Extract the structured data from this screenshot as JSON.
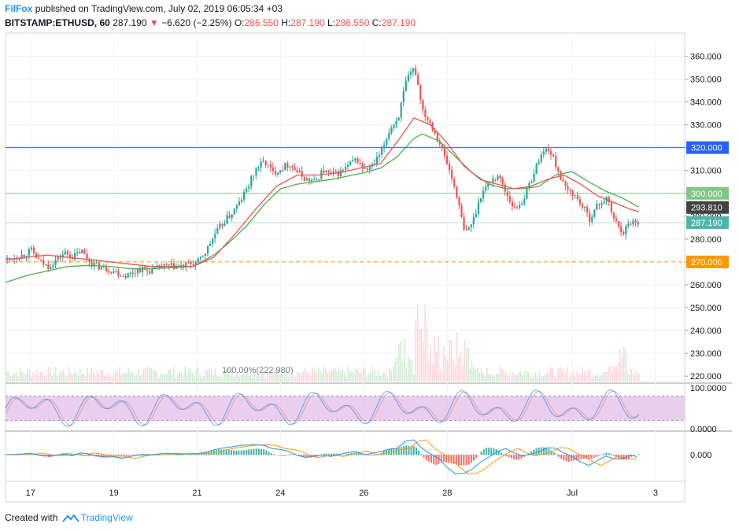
{
  "header": {
    "publisher": "FilFox",
    "published_text": "published on TradingView.com, July 02, 2019 06:05:34 +03",
    "symbol": "BITSTAMP:ETHUSD, 60",
    "last": "287.190",
    "arrow": "▼",
    "change": "−6.620 (−2.25%)",
    "o_label": "O:",
    "o_value": "286.550",
    "h_label": "H:",
    "h_value": "287.190",
    "l_label": "L:",
    "l_value": "286.550",
    "c_label": "C:",
    "c_value": "287.190"
  },
  "footer": {
    "created_with": "Created with",
    "brand": "TradingView"
  },
  "colors": {
    "up": "#26a69a",
    "down": "#ef5350",
    "ma_green": "#4caf50",
    "ma_red": "#ef5350",
    "line_blue": "#2962ff",
    "line_green": "#81c784",
    "line_orange": "#ff9800",
    "stoch_band": "#e1bee7",
    "stoch_k": "#2196f3",
    "stoch_d": "#ef9a9a"
  },
  "chart_data": [
    {
      "type": "candlestick",
      "ylim": [
        218,
        366
      ],
      "y_ticks": [
        "360.000",
        "350.000",
        "340.000",
        "330.000",
        "320.000",
        "310.000",
        "300.000",
        "290.000",
        "280.000",
        "270.000",
        "260.000",
        "250.000",
        "240.000",
        "230.000",
        "220.000"
      ],
      "x_ticks": [
        {
          "label": "17",
          "x": 0.6
        },
        {
          "label": "19",
          "x": 2.6
        },
        {
          "label": "21",
          "x": 4.6
        },
        {
          "label": "24",
          "x": 6.6
        },
        {
          "label": "26",
          "x": 8.6
        },
        {
          "label": "28",
          "x": 10.6
        },
        {
          "label": "Jul",
          "x": 13.6
        },
        {
          "label": "3",
          "x": 15.6
        }
      ],
      "series": [
        {
          "name": "",
          "values": [
            [
              0,
              271
            ],
            [
              0.4,
              273
            ],
            [
              0.6,
              275
            ],
            [
              0.8,
              270
            ],
            [
              1.0,
              268
            ],
            [
              1.2,
              271
            ],
            [
              1.4,
              274
            ],
            [
              1.6,
              272
            ],
            [
              1.8,
              275
            ],
            [
              2.0,
              270
            ],
            [
              2.2,
              268
            ],
            [
              2.4,
              267
            ],
            [
              2.6,
              266
            ],
            [
              2.8,
              264
            ],
            [
              3.0,
              265
            ],
            [
              3.2,
              267
            ],
            [
              3.4,
              266
            ],
            [
              3.6,
              267
            ],
            [
              3.8,
              268
            ],
            [
              4.0,
              268
            ],
            [
              4.2,
              268
            ],
            [
              4.4,
              269
            ],
            [
              4.6,
              270
            ],
            [
              4.8,
              275
            ],
            [
              5.0,
              282
            ],
            [
              5.2,
              287
            ],
            [
              5.4,
              291
            ],
            [
              5.6,
              296
            ],
            [
              5.8,
              303
            ],
            [
              6.0,
              311
            ],
            [
              6.2,
              314
            ],
            [
              6.4,
              309
            ],
            [
              6.6,
              311
            ],
            [
              6.8,
              313
            ],
            [
              7.0,
              309
            ],
            [
              7.2,
              306
            ],
            [
              7.4,
              305
            ],
            [
              7.6,
              310
            ],
            [
              7.8,
              308
            ],
            [
              8.0,
              309
            ],
            [
              8.2,
              312
            ],
            [
              8.4,
              315
            ],
            [
              8.6,
              310
            ],
            [
              8.8,
              312
            ],
            [
              9.0,
              318
            ],
            [
              9.2,
              328
            ],
            [
              9.4,
              333
            ],
            [
              9.6,
              349
            ],
            [
              9.8,
              355
            ],
            [
              10.0,
              336
            ],
            [
              10.2,
              330
            ],
            [
              10.4,
              322
            ],
            [
              10.6,
              312
            ],
            [
              10.8,
              300
            ],
            [
              11.0,
              282
            ],
            [
              11.2,
              288
            ],
            [
              11.4,
              300
            ],
            [
              11.6,
              305
            ],
            [
              11.8,
              308
            ],
            [
              12.0,
              300
            ],
            [
              12.2,
              293
            ],
            [
              12.4,
              297
            ],
            [
              12.6,
              306
            ],
            [
              12.8,
              316
            ],
            [
              13.0,
              320
            ],
            [
              13.2,
              312
            ],
            [
              13.4,
              302
            ],
            [
              13.6,
              300
            ],
            [
              13.8,
              295
            ],
            [
              14.0,
              289
            ],
            [
              14.2,
              295
            ],
            [
              14.4,
              298
            ],
            [
              14.6,
              288
            ],
            [
              14.8,
              283
            ],
            [
              15.0,
              288
            ],
            [
              15.2,
              287.19
            ]
          ]
        },
        {
          "name": "",
          "values": [
            [
              0,
              261
            ],
            [
              0.5,
              264
            ],
            [
              1.0,
              266
            ],
            [
              1.5,
              268
            ],
            [
              2.0,
              268.5
            ],
            [
              2.5,
              268
            ],
            [
              3.0,
              267
            ],
            [
              3.5,
              267
            ],
            [
              4.0,
              267.5
            ],
            [
              4.5,
              268
            ],
            [
              5.0,
              273
            ],
            [
              5.4,
              279
            ],
            [
              5.8,
              286
            ],
            [
              6.2,
              295
            ],
            [
              6.6,
              302
            ],
            [
              7.0,
              304
            ],
            [
              7.4,
              305
            ],
            [
              7.8,
              306
            ],
            [
              8.2,
              307.5
            ],
            [
              8.6,
              309
            ],
            [
              9.0,
              311
            ],
            [
              9.4,
              316
            ],
            [
              9.8,
              324
            ],
            [
              10.0,
              326
            ],
            [
              10.4,
              323
            ],
            [
              10.8,
              316
            ],
            [
              11.2,
              309
            ],
            [
              11.6,
              304
            ],
            [
              12.0,
              302
            ],
            [
              12.4,
              302
            ],
            [
              12.8,
              303
            ],
            [
              13.2,
              308
            ],
            [
              13.6,
              309.5
            ],
            [
              14.0,
              305
            ],
            [
              14.4,
              301
            ],
            [
              14.8,
              298
            ],
            [
              15.2,
              294
            ]
          ]
        },
        {
          "name": "",
          "values": [
            [
              0,
              271
            ],
            [
              0.5,
              272
            ],
            [
              1.0,
              273
            ],
            [
              1.5,
              272
            ],
            [
              2.0,
              271
            ],
            [
              2.5,
              270
            ],
            [
              3.0,
              269
            ],
            [
              3.5,
              268
            ],
            [
              4.0,
              268
            ],
            [
              4.5,
              268
            ],
            [
              5.0,
              272
            ],
            [
              5.5,
              282
            ],
            [
              6.0,
              293
            ],
            [
              6.5,
              303
            ],
            [
              7.0,
              308
            ],
            [
              7.5,
              308
            ],
            [
              8.0,
              309
            ],
            [
              8.5,
              311
            ],
            [
              9.0,
              313
            ],
            [
              9.5,
              325
            ],
            [
              9.8,
              333
            ],
            [
              10.2,
              330
            ],
            [
              10.6,
              322
            ],
            [
              11.0,
              312
            ],
            [
              11.4,
              306
            ],
            [
              11.8,
              304
            ],
            [
              12.2,
              302
            ],
            [
              12.6,
              303
            ],
            [
              13.0,
              306
            ],
            [
              13.4,
              308
            ],
            [
              13.8,
              304
            ],
            [
              14.2,
              299
            ],
            [
              14.6,
              296
            ],
            [
              15.0,
              293
            ],
            [
              15.2,
              292
            ]
          ]
        }
      ],
      "annotation": "100.00%(222.980)",
      "levels": [
        {
          "value": 320,
          "label": "320.000",
          "color": "#2962ff"
        },
        {
          "value": 300,
          "label": "300.000",
          "color": "#81c784"
        },
        {
          "value": 293.81,
          "label": "293.810",
          "color": "#424242"
        },
        {
          "value": 287.19,
          "label": "287.190",
          "color": "#4db6ac"
        },
        {
          "value": 270,
          "label": "270.000",
          "color": "#ff9800"
        }
      ]
    },
    {
      "type": "line",
      "ylim": [
        0,
        100
      ],
      "y_ticks": [
        "100.0000",
        "0.0000"
      ],
      "bands": [
        20,
        80
      ]
    },
    {
      "type": "bar",
      "y_ticks": [
        "0.000"
      ]
    }
  ]
}
